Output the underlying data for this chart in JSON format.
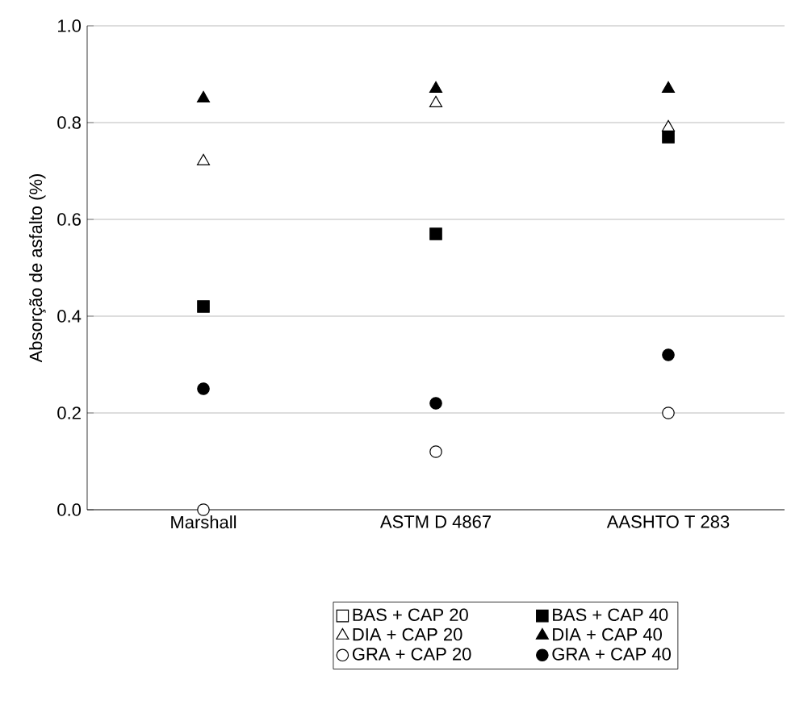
{
  "chart_data": {
    "type": "scatter",
    "ylabel": "Absorção de asfalto (%)",
    "categories": [
      "Marshall",
      "ASTM D 4867",
      "AASHTO T 283"
    ],
    "ylim": [
      0,
      1
    ],
    "yticks": [
      {
        "value": 0,
        "label": "0.0"
      },
      0.2,
      0.4,
      0.6,
      0.8,
      {
        "value": 1,
        "label": "1.0"
      }
    ],
    "grid": "y",
    "legend": "bottom",
    "series": [
      {
        "name": "BAS + CAP 20",
        "color": "#ffffff",
        "marker": "square",
        "values": [
          null,
          null,
          null
        ]
      },
      {
        "name": "BAS + CAP 40",
        "color": "#000000",
        "marker": "square",
        "values": [
          0.42,
          0.57,
          0.77
        ]
      },
      {
        "name": "DIA + CAP 20",
        "color": "#ffffff",
        "marker": "triangle",
        "values": [
          0.72,
          0.84,
          0.79
        ]
      },
      {
        "name": "DIA + CAP 40",
        "color": "#000000",
        "marker": "triangle",
        "values": [
          0.85,
          0.87,
          0.87
        ]
      },
      {
        "name": "GRA + CAP 20",
        "color": "#ffffff",
        "marker": "circle",
        "values": [
          0.0,
          0.12,
          0.2
        ]
      },
      {
        "name": "GRA + CAP 40",
        "color": "#000000",
        "marker": "circle",
        "values": [
          0.25,
          0.22,
          0.32
        ]
      }
    ]
  }
}
